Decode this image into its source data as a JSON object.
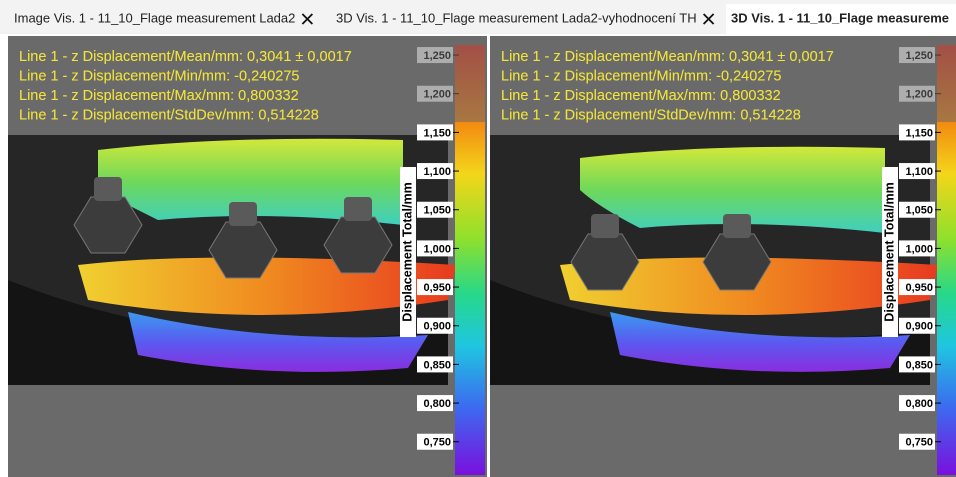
{
  "tabs": [
    {
      "label": "Image Vis. 1 - 11_10_Flage measurement Lada2",
      "active": false
    },
    {
      "label": "3D Vis. 1 - 11_10_Flage measurement Lada2-vyhodnocení TH",
      "active": false
    },
    {
      "label": "3D Vis. 1 - 11_10_Flage measureme",
      "active": true
    }
  ],
  "panels": [
    {
      "stats": [
        "Line 1 - z Displacement/Mean/mm: 0,3041 ± 0,0017",
        "Line 1 - z Displacement/Min/mm: -0,240275",
        "Line 1 - z Displacement/Max/mm: 0,800332",
        "Line 1 - z Displacement/StdDev/mm: 0,514228"
      ],
      "colorbar": {
        "label": "Displacement Total/mm",
        "lim": [
          0.707,
          1.263
        ],
        "ticks": [
          {
            "value": 1.25,
            "label": "1,250"
          },
          {
            "value": 1.2,
            "label": "1,200"
          },
          {
            "value": 1.15,
            "label": "1,150"
          },
          {
            "value": 1.1,
            "label": "1,100"
          },
          {
            "value": 1.05,
            "label": "1,050"
          },
          {
            "value": 1.0,
            "label": "1,000"
          },
          {
            "value": 0.95,
            "label": "0,950"
          },
          {
            "value": 0.9,
            "label": "0,900"
          },
          {
            "value": 0.85,
            "label": "0,850"
          },
          {
            "value": 0.8,
            "label": "0,800"
          },
          {
            "value": 0.75,
            "label": "0,750"
          }
        ]
      }
    },
    {
      "stats": [
        "Line 1 - z Displacement/Mean/mm: 0,3041 ± 0,0017",
        "Line 1 - z Displacement/Min/mm: -0,240275",
        "Line 1 - z Displacement/Max/mm: 0,800332",
        "Line 1 - z Displacement/StdDev/mm: 0,514228"
      ],
      "colorbar": {
        "label": "Displacement Total/mm",
        "lim": [
          0.707,
          1.263
        ],
        "ticks": [
          {
            "value": 1.25,
            "label": "1,250"
          },
          {
            "value": 1.2,
            "label": "1,200"
          },
          {
            "value": 1.15,
            "label": "1,150"
          },
          {
            "value": 1.1,
            "label": "1,100"
          },
          {
            "value": 1.05,
            "label": "1,050"
          },
          {
            "value": 1.0,
            "label": "1,000"
          },
          {
            "value": 0.95,
            "label": "0,950"
          },
          {
            "value": 0.9,
            "label": "0,900"
          },
          {
            "value": 0.85,
            "label": "0,850"
          },
          {
            "value": 0.8,
            "label": "0,800"
          },
          {
            "value": 0.75,
            "label": "0,750"
          }
        ]
      }
    }
  ]
}
